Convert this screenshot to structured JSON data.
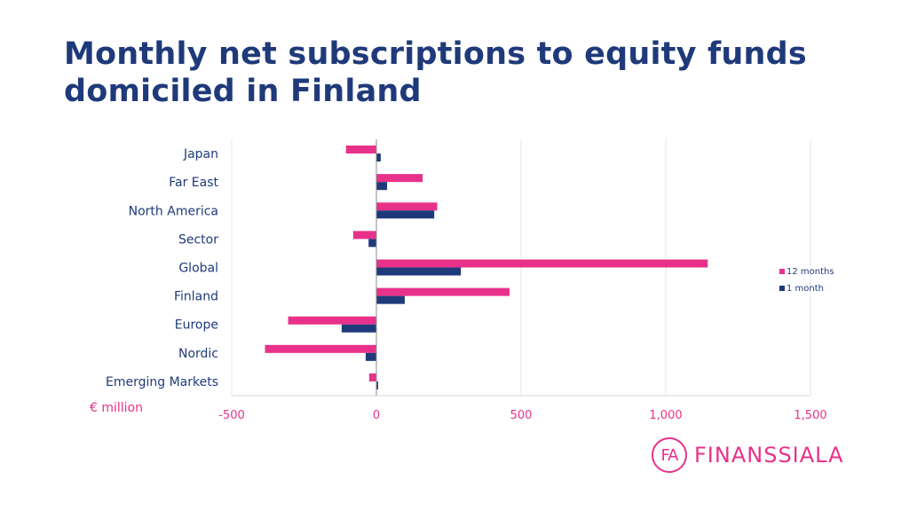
{
  "title": "Monthly net subscriptions to equity funds domiciled in Finland",
  "unit_label": "€ million",
  "logo": {
    "mark": "FA",
    "text": "FINANSSIALA"
  },
  "colors": {
    "series_12m": "#e8318a",
    "series_1m": "#1f3a7a",
    "title": "#1f3a7a",
    "ticks": "#e8318a",
    "grid": "#e6e6e6"
  },
  "chart_data": {
    "type": "bar",
    "orientation": "horizontal",
    "title": "Monthly net subscriptions to equity funds domiciled in Finland",
    "xlabel": "€ million",
    "ylabel": "",
    "xlim": [
      -500,
      1500
    ],
    "xticks": [
      -500,
      0,
      500,
      1000,
      1500
    ],
    "xtick_labels": [
      "-500",
      "0",
      "500",
      "1,000",
      "1,500"
    ],
    "grid": true,
    "legend_position": "right",
    "categories": [
      "Japan",
      "Far East",
      "North America",
      "Sector",
      "Global",
      "Finland",
      "Europe",
      "Nordic",
      "Emerging Markets"
    ],
    "series": [
      {
        "name": "12 months",
        "color": "#e8318a",
        "values": [
          -105,
          160,
          210,
          -80,
          1145,
          460,
          -305,
          -385,
          -25
        ]
      },
      {
        "name": "1 month",
        "color": "#1f3a7a",
        "values": [
          15,
          37,
          200,
          -27,
          292,
          98,
          -120,
          -37,
          6
        ]
      }
    ]
  }
}
